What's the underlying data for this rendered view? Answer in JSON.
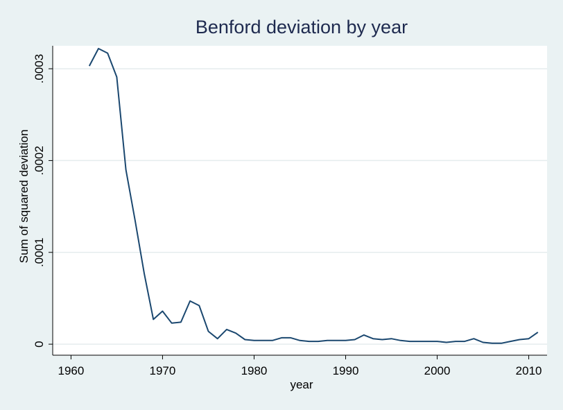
{
  "chart_data": {
    "type": "line",
    "title": "Benford deviation by year",
    "xlabel": "year",
    "ylabel": "Sum of squared deviation",
    "xlim": [
      1958,
      2012
    ],
    "ylim": [
      -1.2e-05,
      0.000325
    ],
    "xticks": [
      1960,
      1970,
      1980,
      1990,
      2000,
      2010
    ],
    "xtick_labels": [
      "1960",
      "1970",
      "1980",
      "1990",
      "2000",
      "2010"
    ],
    "yticks": [
      0,
      0.0001,
      0.0002,
      0.0003
    ],
    "ytick_labels": [
      "0",
      ".0001",
      ".0002",
      ".0003"
    ],
    "grid": true,
    "legend": "none",
    "colors": {
      "background": "#eaf2f3",
      "plot_area": "#ffffff",
      "grid": "#e5ecee",
      "line": "#1a476f",
      "title": "#1e2a4f",
      "text": "#000000"
    },
    "series": [
      {
        "x": [
          1962,
          1963,
          1964,
          1965,
          1966,
          1967,
          1968,
          1969,
          1970,
          1971,
          1972,
          1973,
          1974,
          1975,
          1976,
          1977,
          1978,
          1979,
          1980,
          1981,
          1982,
          1983,
          1984,
          1985,
          1986,
          1987,
          1988,
          1989,
          1990,
          1991,
          1992,
          1993,
          1994,
          1995,
          1996,
          1997,
          1998,
          1999,
          2000,
          2001,
          2002,
          2003,
          2004,
          2005,
          2006,
          2007,
          2008,
          2009,
          2010,
          2011
        ],
        "values": [
          0.000303,
          0.000322,
          0.000317,
          0.000291,
          0.00019,
          0.000135,
          7.7e-05,
          2.7e-05,
          3.6e-05,
          2.3e-05,
          2.4e-05,
          4.7e-05,
          4.2e-05,
          1.4e-05,
          6e-06,
          1.6e-05,
          1.2e-05,
          5e-06,
          4e-06,
          4e-06,
          4e-06,
          7e-06,
          7e-06,
          4e-06,
          3e-06,
          3e-06,
          4e-06,
          4e-06,
          4e-06,
          5e-06,
          1e-05,
          6e-06,
          5e-06,
          6e-06,
          4e-06,
          3e-06,
          3e-06,
          3e-06,
          3e-06,
          2e-06,
          3e-06,
          3e-06,
          6e-06,
          2e-06,
          1e-06,
          1e-06,
          3e-06,
          5e-06,
          6e-06,
          1.3e-05
        ]
      }
    ]
  }
}
